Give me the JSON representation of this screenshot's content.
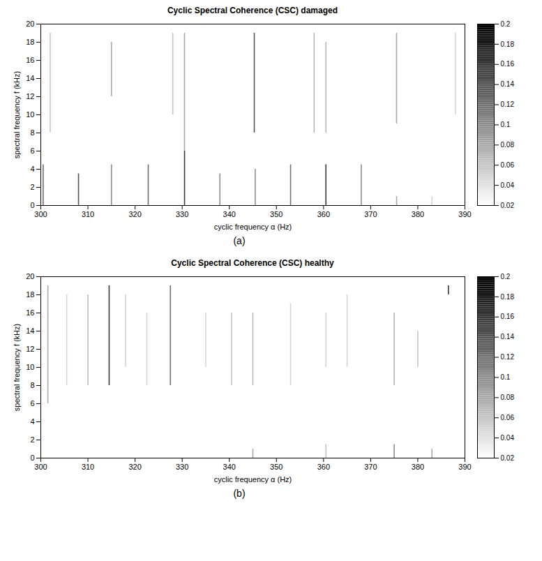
{
  "chart_data": [
    {
      "type": "heatmap",
      "title": "Cyclic Spectral Coherence (CSC) damaged",
      "caption": "(a)",
      "x_label": "cyclic frequency α (Hz)",
      "y_label": "spectral frequency f (kHz)",
      "xlim": [
        300,
        390
      ],
      "xticks": [
        300,
        310,
        320,
        330,
        340,
        350,
        360,
        370,
        380,
        390
      ],
      "ylim": [
        0,
        20
      ],
      "yticks": [
        0,
        2,
        4,
        6,
        8,
        10,
        12,
        14,
        16,
        18,
        20
      ],
      "colorbar_lim": [
        0.02,
        0.2
      ],
      "colorbar_ticks": [
        0.02,
        0.04,
        0.06,
        0.08,
        0.1,
        0.12,
        0.14,
        0.16,
        0.18,
        0.2
      ],
      "lines": [
        {
          "alpha": 300.5,
          "f1": 0,
          "f2": 4.5,
          "value": 0.12
        },
        {
          "alpha": 302,
          "f1": 8,
          "f2": 19,
          "value": 0.06
        },
        {
          "alpha": 308,
          "f1": 0,
          "f2": 3.5,
          "value": 0.14
        },
        {
          "alpha": 315,
          "f1": 0,
          "f2": 4.5,
          "value": 0.1
        },
        {
          "alpha": 315,
          "f1": 12,
          "f2": 18,
          "value": 0.08
        },
        {
          "alpha": 322.8,
          "f1": 0,
          "f2": 4.5,
          "value": 0.12
        },
        {
          "alpha": 328,
          "f1": 10,
          "f2": 19,
          "value": 0.06
        },
        {
          "alpha": 330.5,
          "f1": 0,
          "f2": 6,
          "value": 0.16
        },
        {
          "alpha": 330.5,
          "f1": 6,
          "f2": 19,
          "value": 0.08
        },
        {
          "alpha": 338,
          "f1": 0,
          "f2": 3.5,
          "value": 0.1
        },
        {
          "alpha": 345.5,
          "f1": 0,
          "f2": 4,
          "value": 0.1
        },
        {
          "alpha": 345.3,
          "f1": 8,
          "f2": 19,
          "value": 0.14
        },
        {
          "alpha": 353,
          "f1": 0,
          "f2": 4.5,
          "value": 0.12
        },
        {
          "alpha": 358,
          "f1": 8,
          "f2": 19,
          "value": 0.07
        },
        {
          "alpha": 360.5,
          "f1": 0,
          "f2": 4.5,
          "value": 0.16
        },
        {
          "alpha": 360.5,
          "f1": 8,
          "f2": 18,
          "value": 0.07
        },
        {
          "alpha": 368,
          "f1": 0,
          "f2": 4.5,
          "value": 0.1
        },
        {
          "alpha": 375.5,
          "f1": 0,
          "f2": 1,
          "value": 0.08
        },
        {
          "alpha": 375.5,
          "f1": 9,
          "f2": 19,
          "value": 0.08
        },
        {
          "alpha": 383,
          "f1": 0,
          "f2": 1,
          "value": 0.05
        },
        {
          "alpha": 388,
          "f1": 10,
          "f2": 19,
          "value": 0.05
        }
      ]
    },
    {
      "type": "heatmap",
      "title": "Cyclic Spectral Coherence (CSC) healthy",
      "caption": "(b)",
      "x_label": "cyclic frequency α (Hz)",
      "y_label": "spectral frequency f (kHz)",
      "xlim": [
        300,
        390
      ],
      "xticks": [
        300,
        310,
        320,
        330,
        340,
        350,
        360,
        370,
        380,
        390
      ],
      "ylim": [
        0,
        20
      ],
      "yticks": [
        0,
        2,
        4,
        6,
        8,
        10,
        12,
        14,
        16,
        18,
        20
      ],
      "colorbar_lim": [
        0.02,
        0.2
      ],
      "colorbar_ticks": [
        0.02,
        0.04,
        0.06,
        0.08,
        0.1,
        0.12,
        0.14,
        0.16,
        0.18,
        0.2
      ],
      "lines": [
        {
          "alpha": 301.5,
          "f1": 6,
          "f2": 19,
          "value": 0.08
        },
        {
          "alpha": 305.5,
          "f1": 8,
          "f2": 18,
          "value": 0.05
        },
        {
          "alpha": 310,
          "f1": 8,
          "f2": 18,
          "value": 0.07
        },
        {
          "alpha": 314.5,
          "f1": 8,
          "f2": 19,
          "value": 0.16
        },
        {
          "alpha": 318,
          "f1": 10,
          "f2": 18,
          "value": 0.05
        },
        {
          "alpha": 322.5,
          "f1": 8,
          "f2": 16,
          "value": 0.05
        },
        {
          "alpha": 327.5,
          "f1": 8,
          "f2": 19,
          "value": 0.12
        },
        {
          "alpha": 335,
          "f1": 10,
          "f2": 16,
          "value": 0.05
        },
        {
          "alpha": 340.5,
          "f1": 8,
          "f2": 16,
          "value": 0.06
        },
        {
          "alpha": 345,
          "f1": 0,
          "f2": 1,
          "value": 0.08
        },
        {
          "alpha": 345,
          "f1": 8,
          "f2": 16,
          "value": 0.07
        },
        {
          "alpha": 353,
          "f1": 8,
          "f2": 17,
          "value": 0.05
        },
        {
          "alpha": 360.5,
          "f1": 0,
          "f2": 1.5,
          "value": 0.06
        },
        {
          "alpha": 360.5,
          "f1": 10,
          "f2": 16,
          "value": 0.05
        },
        {
          "alpha": 365,
          "f1": 10,
          "f2": 18,
          "value": 0.05
        },
        {
          "alpha": 375,
          "f1": 0,
          "f2": 1.5,
          "value": 0.1
        },
        {
          "alpha": 375,
          "f1": 8,
          "f2": 16,
          "value": 0.07
        },
        {
          "alpha": 380,
          "f1": 10,
          "f2": 14,
          "value": 0.06
        },
        {
          "alpha": 383,
          "f1": 0,
          "f2": 1,
          "value": 0.08
        },
        {
          "alpha": 386.5,
          "f1": 18,
          "f2": 19,
          "value": 0.16
        }
      ]
    }
  ]
}
